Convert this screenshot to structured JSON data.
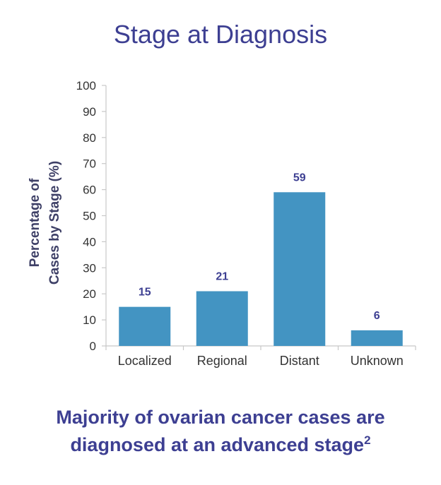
{
  "chart_data": {
    "type": "bar",
    "title": "Stage at Diagnosis",
    "categories": [
      "Localized",
      "Regional",
      "Distant",
      "Unknown"
    ],
    "values": [
      15,
      21,
      59,
      6
    ],
    "data_labels": [
      "15",
      "21",
      "59",
      "6"
    ],
    "ylabel_lines": [
      "Percentage of",
      "Cases  by Stage (%)"
    ],
    "xlabel": "",
    "ylim": [
      0,
      100
    ],
    "yticks": [
      0,
      10,
      20,
      30,
      40,
      50,
      60,
      70,
      80,
      90,
      100
    ],
    "grid": false,
    "bar_color": "#4394c2"
  },
  "caption": {
    "line1": "Majority of ovarian cancer cases are",
    "line2_text": "diagnosed at an advanced stage",
    "line2_ref": "2"
  },
  "colors": {
    "title": "#3d3f92",
    "axis": "#c8c8c8"
  }
}
